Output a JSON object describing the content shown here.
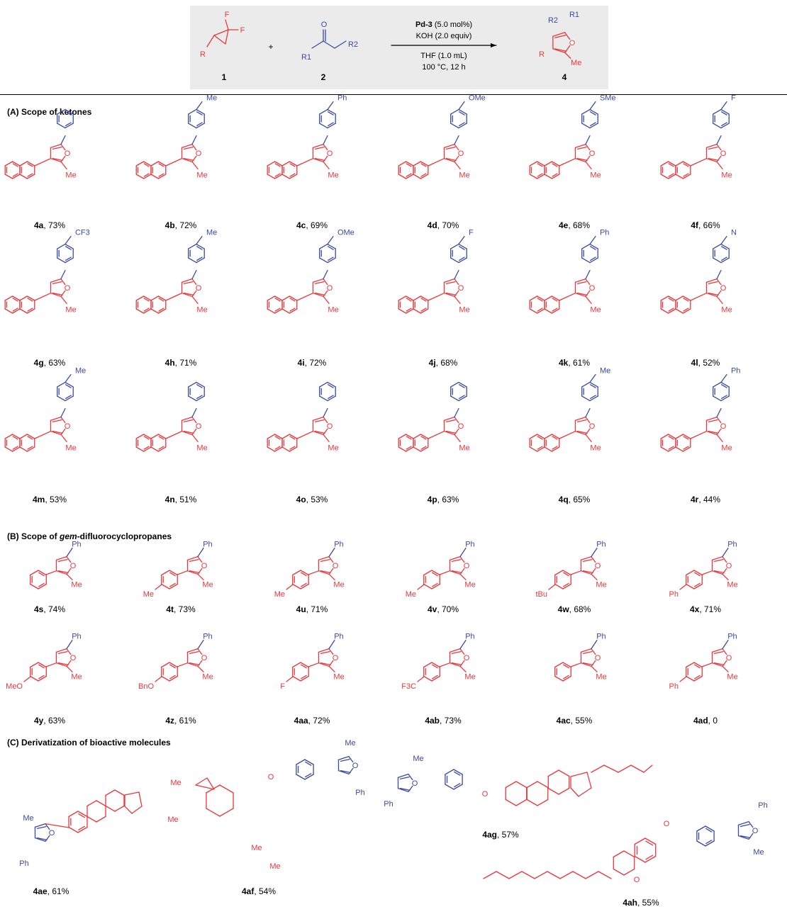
{
  "scheme": {
    "reactant1_label": "1",
    "reactant2_label": "2",
    "product_label": "4",
    "plus": "+",
    "catalyst_name": "Pd-3",
    "catalyst_loading": " (5.0 mol%)",
    "base": "KOH (2.0 equiv)",
    "solvent": "THF (1.0 mL)",
    "conditions": "100 °C, 12 h",
    "substituents": {
      "R": "R",
      "R1": "R1",
      "R2": "R2",
      "F": "F",
      "O": "O",
      "Me": "Me"
    }
  },
  "sections": {
    "A": "(A) Scope of ketones",
    "B_prefix": "(B) Scope of ",
    "B_italic": "gem",
    "B_suffix": "-difluorocyclopropanes",
    "C": "(C) Derivatization of bioactive molecules"
  },
  "compounds_A": [
    {
      "id": "4a",
      "yield": ", 73%",
      "sub": ""
    },
    {
      "id": "4b",
      "yield": ", 72%",
      "sub": "Me"
    },
    {
      "id": "4c",
      "yield": ", 69%",
      "sub": "Ph"
    },
    {
      "id": "4d",
      "yield": ", 70%",
      "sub": "OMe"
    },
    {
      "id": "4e",
      "yield": ", 68%",
      "sub": "SMe"
    },
    {
      "id": "4f",
      "yield": ", 66%",
      "sub": "F"
    },
    {
      "id": "4g",
      "yield": ", 63%",
      "sub": "CF3"
    },
    {
      "id": "4h",
      "yield": ", 71%",
      "sub": "Me"
    },
    {
      "id": "4i",
      "yield": ", 72%",
      "sub": "OMe"
    },
    {
      "id": "4j",
      "yield": ", 68%",
      "sub": "F"
    },
    {
      "id": "4k",
      "yield": ", 61%",
      "sub": "Ph"
    },
    {
      "id": "4l",
      "yield": ", 52%",
      "sub": "N"
    },
    {
      "id": "4m",
      "yield": ", 53%",
      "sub": "Me"
    },
    {
      "id": "4n",
      "yield": ", 51%",
      "sub": ""
    },
    {
      "id": "4o",
      "yield": ", 53%",
      "sub": ""
    },
    {
      "id": "4p",
      "yield": ", 63%",
      "sub": ""
    },
    {
      "id": "4q",
      "yield": ", 65%",
      "sub": "Me"
    },
    {
      "id": "4r",
      "yield": ", 44%",
      "sub": "Ph"
    }
  ],
  "compounds_B": [
    {
      "id": "4s",
      "yield": ", 74%",
      "sub": ""
    },
    {
      "id": "4t",
      "yield": ", 73%",
      "sub": "Me"
    },
    {
      "id": "4u",
      "yield": ", 71%",
      "sub": "Me"
    },
    {
      "id": "4v",
      "yield": ", 70%",
      "sub": "Me"
    },
    {
      "id": "4w",
      "yield": ", 68%",
      "sub": "tBu"
    },
    {
      "id": "4x",
      "yield": ", 71%",
      "sub": "Ph"
    },
    {
      "id": "4y",
      "yield": ", 63%",
      "sub": "MeO"
    },
    {
      "id": "4z",
      "yield": ", 61%",
      "sub": "BnO"
    },
    {
      "id": "4aa",
      "yield": ", 72%",
      "sub": "F"
    },
    {
      "id": "4ab",
      "yield": ", 73%",
      "sub": "F3C"
    },
    {
      "id": "4ac",
      "yield": ", 55%",
      "sub": ""
    },
    {
      "id": "4ad",
      "yield": ", 0",
      "sub": "Ph"
    }
  ],
  "compounds_C": [
    {
      "id": "4ae",
      "yield": ", 61%"
    },
    {
      "id": "4af",
      "yield": ", 54%"
    },
    {
      "id": "4ag",
      "yield": ", 57%"
    },
    {
      "id": "4ah",
      "yield": ", 55%"
    }
  ],
  "colors": {
    "reagent": "#e8383d",
    "ketone": "#3a4aa0",
    "box": "#ebebeb"
  }
}
